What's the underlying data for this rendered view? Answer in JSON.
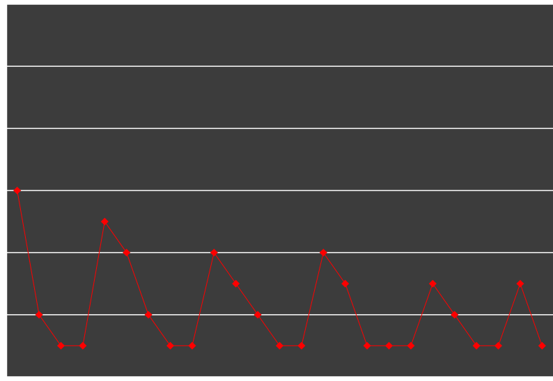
{
  "chart_data": {
    "type": "line",
    "categories": [
      null,
      null,
      null,
      null,
      null,
      null,
      null,
      null,
      null,
      null,
      null,
      null,
      null,
      null,
      null,
      null,
      null,
      null,
      null,
      null,
      null,
      null,
      null,
      null,
      null
    ],
    "values": [
      3,
      1,
      0.5,
      0.5,
      2.5,
      2,
      1,
      0.5,
      0.5,
      2,
      1.5,
      1,
      0.5,
      0.5,
      2,
      1.5,
      0.5,
      0.5,
      0.5,
      1.5,
      1,
      0.5,
      0.5,
      1.5,
      0.5
    ],
    "color": "#ff0000",
    "ylim": [
      0,
      6
    ],
    "yticks": [
      0,
      1,
      2,
      3,
      4,
      5,
      6
    ],
    "grid": true
  }
}
